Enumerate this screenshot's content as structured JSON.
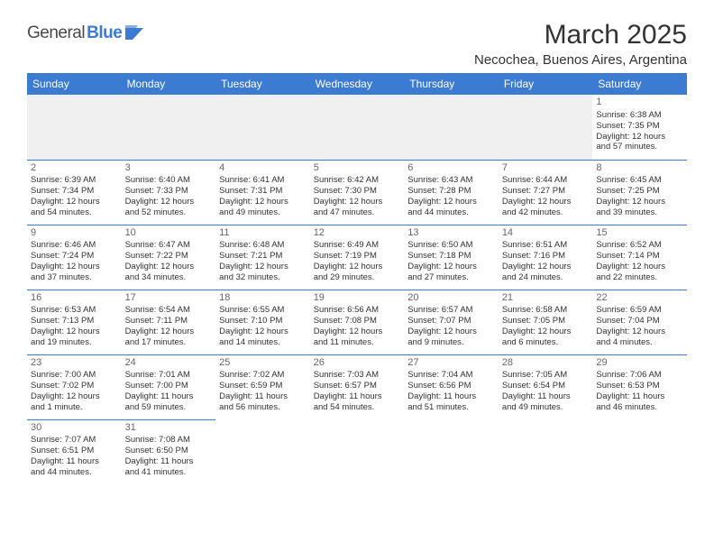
{
  "logo": {
    "part1": "General",
    "part2": "Blue"
  },
  "title": "March 2025",
  "location": "Necochea, Buenos Aires, Argentina",
  "colors": {
    "header_bg": "#3b7bd1",
    "header_text": "#ffffff",
    "border": "#3b7bd1",
    "text": "#333333",
    "daynum": "#666666",
    "empty_bg": "#f0f0f0"
  },
  "typography": {
    "title_fontsize": 30,
    "location_fontsize": 15,
    "header_fontsize": 12,
    "cell_fontsize": 9.5,
    "daynum_fontsize": 11
  },
  "weekdays": [
    "Sunday",
    "Monday",
    "Tuesday",
    "Wednesday",
    "Thursday",
    "Friday",
    "Saturday"
  ],
  "weeks": [
    [
      null,
      null,
      null,
      null,
      null,
      null,
      {
        "day": "1",
        "sunrise": "Sunrise: 6:38 AM",
        "sunset": "Sunset: 7:35 PM",
        "daylight1": "Daylight: 12 hours",
        "daylight2": "and 57 minutes."
      }
    ],
    [
      {
        "day": "2",
        "sunrise": "Sunrise: 6:39 AM",
        "sunset": "Sunset: 7:34 PM",
        "daylight1": "Daylight: 12 hours",
        "daylight2": "and 54 minutes."
      },
      {
        "day": "3",
        "sunrise": "Sunrise: 6:40 AM",
        "sunset": "Sunset: 7:33 PM",
        "daylight1": "Daylight: 12 hours",
        "daylight2": "and 52 minutes."
      },
      {
        "day": "4",
        "sunrise": "Sunrise: 6:41 AM",
        "sunset": "Sunset: 7:31 PM",
        "daylight1": "Daylight: 12 hours",
        "daylight2": "and 49 minutes."
      },
      {
        "day": "5",
        "sunrise": "Sunrise: 6:42 AM",
        "sunset": "Sunset: 7:30 PM",
        "daylight1": "Daylight: 12 hours",
        "daylight2": "and 47 minutes."
      },
      {
        "day": "6",
        "sunrise": "Sunrise: 6:43 AM",
        "sunset": "Sunset: 7:28 PM",
        "daylight1": "Daylight: 12 hours",
        "daylight2": "and 44 minutes."
      },
      {
        "day": "7",
        "sunrise": "Sunrise: 6:44 AM",
        "sunset": "Sunset: 7:27 PM",
        "daylight1": "Daylight: 12 hours",
        "daylight2": "and 42 minutes."
      },
      {
        "day": "8",
        "sunrise": "Sunrise: 6:45 AM",
        "sunset": "Sunset: 7:25 PM",
        "daylight1": "Daylight: 12 hours",
        "daylight2": "and 39 minutes."
      }
    ],
    [
      {
        "day": "9",
        "sunrise": "Sunrise: 6:46 AM",
        "sunset": "Sunset: 7:24 PM",
        "daylight1": "Daylight: 12 hours",
        "daylight2": "and 37 minutes."
      },
      {
        "day": "10",
        "sunrise": "Sunrise: 6:47 AM",
        "sunset": "Sunset: 7:22 PM",
        "daylight1": "Daylight: 12 hours",
        "daylight2": "and 34 minutes."
      },
      {
        "day": "11",
        "sunrise": "Sunrise: 6:48 AM",
        "sunset": "Sunset: 7:21 PM",
        "daylight1": "Daylight: 12 hours",
        "daylight2": "and 32 minutes."
      },
      {
        "day": "12",
        "sunrise": "Sunrise: 6:49 AM",
        "sunset": "Sunset: 7:19 PM",
        "daylight1": "Daylight: 12 hours",
        "daylight2": "and 29 minutes."
      },
      {
        "day": "13",
        "sunrise": "Sunrise: 6:50 AM",
        "sunset": "Sunset: 7:18 PM",
        "daylight1": "Daylight: 12 hours",
        "daylight2": "and 27 minutes."
      },
      {
        "day": "14",
        "sunrise": "Sunrise: 6:51 AM",
        "sunset": "Sunset: 7:16 PM",
        "daylight1": "Daylight: 12 hours",
        "daylight2": "and 24 minutes."
      },
      {
        "day": "15",
        "sunrise": "Sunrise: 6:52 AM",
        "sunset": "Sunset: 7:14 PM",
        "daylight1": "Daylight: 12 hours",
        "daylight2": "and 22 minutes."
      }
    ],
    [
      {
        "day": "16",
        "sunrise": "Sunrise: 6:53 AM",
        "sunset": "Sunset: 7:13 PM",
        "daylight1": "Daylight: 12 hours",
        "daylight2": "and 19 minutes."
      },
      {
        "day": "17",
        "sunrise": "Sunrise: 6:54 AM",
        "sunset": "Sunset: 7:11 PM",
        "daylight1": "Daylight: 12 hours",
        "daylight2": "and 17 minutes."
      },
      {
        "day": "18",
        "sunrise": "Sunrise: 6:55 AM",
        "sunset": "Sunset: 7:10 PM",
        "daylight1": "Daylight: 12 hours",
        "daylight2": "and 14 minutes."
      },
      {
        "day": "19",
        "sunrise": "Sunrise: 6:56 AM",
        "sunset": "Sunset: 7:08 PM",
        "daylight1": "Daylight: 12 hours",
        "daylight2": "and 11 minutes."
      },
      {
        "day": "20",
        "sunrise": "Sunrise: 6:57 AM",
        "sunset": "Sunset: 7:07 PM",
        "daylight1": "Daylight: 12 hours",
        "daylight2": "and 9 minutes."
      },
      {
        "day": "21",
        "sunrise": "Sunrise: 6:58 AM",
        "sunset": "Sunset: 7:05 PM",
        "daylight1": "Daylight: 12 hours",
        "daylight2": "and 6 minutes."
      },
      {
        "day": "22",
        "sunrise": "Sunrise: 6:59 AM",
        "sunset": "Sunset: 7:04 PM",
        "daylight1": "Daylight: 12 hours",
        "daylight2": "and 4 minutes."
      }
    ],
    [
      {
        "day": "23",
        "sunrise": "Sunrise: 7:00 AM",
        "sunset": "Sunset: 7:02 PM",
        "daylight1": "Daylight: 12 hours",
        "daylight2": "and 1 minute."
      },
      {
        "day": "24",
        "sunrise": "Sunrise: 7:01 AM",
        "sunset": "Sunset: 7:00 PM",
        "daylight1": "Daylight: 11 hours",
        "daylight2": "and 59 minutes."
      },
      {
        "day": "25",
        "sunrise": "Sunrise: 7:02 AM",
        "sunset": "Sunset: 6:59 PM",
        "daylight1": "Daylight: 11 hours",
        "daylight2": "and 56 minutes."
      },
      {
        "day": "26",
        "sunrise": "Sunrise: 7:03 AM",
        "sunset": "Sunset: 6:57 PM",
        "daylight1": "Daylight: 11 hours",
        "daylight2": "and 54 minutes."
      },
      {
        "day": "27",
        "sunrise": "Sunrise: 7:04 AM",
        "sunset": "Sunset: 6:56 PM",
        "daylight1": "Daylight: 11 hours",
        "daylight2": "and 51 minutes."
      },
      {
        "day": "28",
        "sunrise": "Sunrise: 7:05 AM",
        "sunset": "Sunset: 6:54 PM",
        "daylight1": "Daylight: 11 hours",
        "daylight2": "and 49 minutes."
      },
      {
        "day": "29",
        "sunrise": "Sunrise: 7:06 AM",
        "sunset": "Sunset: 6:53 PM",
        "daylight1": "Daylight: 11 hours",
        "daylight2": "and 46 minutes."
      }
    ],
    [
      {
        "day": "30",
        "sunrise": "Sunrise: 7:07 AM",
        "sunset": "Sunset: 6:51 PM",
        "daylight1": "Daylight: 11 hours",
        "daylight2": "and 44 minutes."
      },
      {
        "day": "31",
        "sunrise": "Sunrise: 7:08 AM",
        "sunset": "Sunset: 6:50 PM",
        "daylight1": "Daylight: 11 hours",
        "daylight2": "and 41 minutes."
      },
      null,
      null,
      null,
      null,
      null
    ]
  ]
}
